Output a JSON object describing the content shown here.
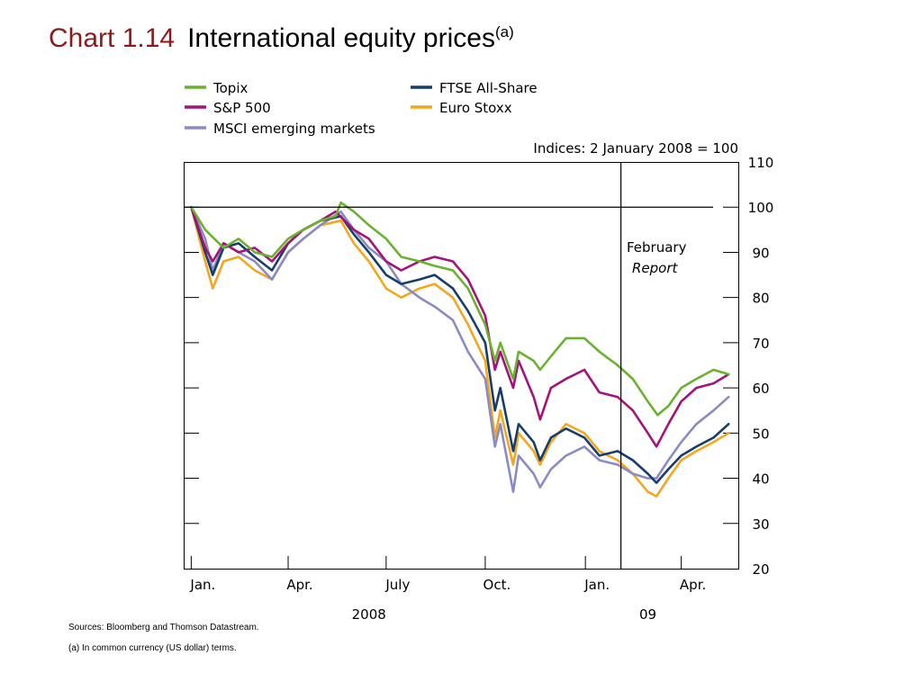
{
  "title": {
    "number": "Chart 1.14",
    "text": "International equity prices",
    "sup": "(a)"
  },
  "sources": "Sources:  Bloomberg and Thomson Datastream.",
  "note": "(a)  In common currency (US dollar) terms.",
  "chart_data": {
    "type": "line",
    "index_label": "Indices:  2 January 2008 = 100",
    "ylim": [
      20,
      110
    ],
    "yticks": [
      20,
      30,
      40,
      50,
      60,
      70,
      80,
      90,
      100,
      110
    ],
    "ylabel": "",
    "xlabel": "",
    "x_tick_labels": [
      "Jan.",
      "Apr.",
      "July",
      "Oct.",
      "Jan.",
      "Apr."
    ],
    "x_tick_dates": [
      "2008-01-02",
      "2008-04-01",
      "2008-07-01",
      "2008-10-01",
      "2009-01-02",
      "2009-04-01"
    ],
    "x_year_labels": [
      {
        "label": "2008",
        "date": "2008-06-15"
      },
      {
        "label": "09",
        "date": "2009-03-01"
      }
    ],
    "xlim": [
      "2007-12-26",
      "2009-05-24"
    ],
    "legend_position": "top",
    "reference_line": 100,
    "annotation": {
      "line1": "February",
      "line2": "Report",
      "date": "2009-02-04"
    },
    "series": [
      {
        "name": "Topix",
        "color": "#6ab22e",
        "x": [
          "2008-01-02",
          "2008-01-15",
          "2008-02-01",
          "2008-02-15",
          "2008-03-01",
          "2008-03-17",
          "2008-04-01",
          "2008-04-15",
          "2008-05-01",
          "2008-05-15",
          "2008-05-20",
          "2008-06-01",
          "2008-06-15",
          "2008-07-01",
          "2008-07-15",
          "2008-08-01",
          "2008-08-15",
          "2008-09-01",
          "2008-09-15",
          "2008-10-01",
          "2008-10-10",
          "2008-10-15",
          "2008-10-27",
          "2008-11-01",
          "2008-11-15",
          "2008-11-21",
          "2008-12-01",
          "2008-12-15",
          "2009-01-01",
          "2009-01-15",
          "2009-02-01",
          "2009-02-15",
          "2009-03-01",
          "2009-03-10",
          "2009-03-20",
          "2009-04-01",
          "2009-04-15",
          "2009-05-01",
          "2009-05-15"
        ],
        "y": [
          100,
          95,
          91,
          93,
          90,
          89,
          93,
          95,
          97,
          98,
          101,
          99,
          96,
          93,
          89,
          88,
          87,
          86,
          82,
          74,
          66,
          70,
          62,
          68,
          66,
          64,
          67,
          71,
          71,
          68,
          65,
          62,
          57,
          54,
          56,
          60,
          62,
          64,
          63
        ]
      },
      {
        "name": "S&P 500",
        "color": "#a4127a",
        "x": [
          "2008-01-02",
          "2008-01-15",
          "2008-01-22",
          "2008-02-01",
          "2008-02-15",
          "2008-03-01",
          "2008-03-17",
          "2008-04-01",
          "2008-04-15",
          "2008-05-01",
          "2008-05-15",
          "2008-06-01",
          "2008-06-15",
          "2008-07-01",
          "2008-07-15",
          "2008-08-01",
          "2008-08-15",
          "2008-09-01",
          "2008-09-15",
          "2008-10-01",
          "2008-10-10",
          "2008-10-15",
          "2008-10-27",
          "2008-11-01",
          "2008-11-15",
          "2008-11-21",
          "2008-12-01",
          "2008-12-15",
          "2009-01-01",
          "2009-01-15",
          "2009-02-01",
          "2009-02-15",
          "2009-03-01",
          "2009-03-09",
          "2009-03-20",
          "2009-04-01",
          "2009-04-15",
          "2009-05-01",
          "2009-05-15"
        ],
        "y": [
          100,
          91,
          88,
          92,
          90,
          91,
          88,
          92,
          95,
          97,
          99,
          95,
          93,
          88,
          86,
          88,
          89,
          88,
          84,
          76,
          64,
          68,
          60,
          66,
          58,
          53,
          60,
          62,
          64,
          59,
          58,
          55,
          50,
          47,
          52,
          57,
          60,
          61,
          63
        ]
      },
      {
        "name": "MSCI emerging markets",
        "color": "#8b8bc4",
        "x": [
          "2008-01-02",
          "2008-01-15",
          "2008-01-22",
          "2008-02-01",
          "2008-02-15",
          "2008-03-01",
          "2008-03-17",
          "2008-04-01",
          "2008-04-15",
          "2008-05-01",
          "2008-05-20",
          "2008-06-01",
          "2008-06-15",
          "2008-07-01",
          "2008-07-15",
          "2008-08-01",
          "2008-08-15",
          "2008-09-01",
          "2008-09-15",
          "2008-10-01",
          "2008-10-10",
          "2008-10-15",
          "2008-10-27",
          "2008-11-01",
          "2008-11-15",
          "2008-11-21",
          "2008-12-01",
          "2008-12-15",
          "2009-01-01",
          "2009-01-15",
          "2009-02-01",
          "2009-02-15",
          "2009-03-01",
          "2009-03-09",
          "2009-03-20",
          "2009-04-01",
          "2009-04-15",
          "2009-05-01",
          "2009-05-15"
        ],
        "y": [
          100,
          93,
          86,
          92,
          90,
          88,
          84,
          90,
          93,
          96,
          99,
          95,
          91,
          88,
          83,
          80,
          78,
          75,
          68,
          62,
          47,
          52,
          37,
          45,
          41,
          38,
          42,
          45,
          47,
          44,
          43,
          41,
          40,
          40,
          44,
          48,
          52,
          55,
          58
        ]
      },
      {
        "name": "FTSE All-Share",
        "color": "#173e6b",
        "x": [
          "2008-01-02",
          "2008-01-15",
          "2008-01-22",
          "2008-02-01",
          "2008-02-15",
          "2008-03-01",
          "2008-03-17",
          "2008-04-01",
          "2008-04-15",
          "2008-05-01",
          "2008-05-20",
          "2008-06-01",
          "2008-06-15",
          "2008-07-01",
          "2008-07-15",
          "2008-08-01",
          "2008-08-15",
          "2008-09-01",
          "2008-09-15",
          "2008-10-01",
          "2008-10-10",
          "2008-10-15",
          "2008-10-27",
          "2008-11-01",
          "2008-11-15",
          "2008-11-21",
          "2008-12-01",
          "2008-12-15",
          "2009-01-01",
          "2009-01-15",
          "2009-02-01",
          "2009-02-15",
          "2009-03-01",
          "2009-03-09",
          "2009-03-20",
          "2009-04-01",
          "2009-04-15",
          "2009-05-01",
          "2009-05-15"
        ],
        "y": [
          100,
          90,
          85,
          91,
          92,
          89,
          86,
          92,
          95,
          97,
          98,
          94,
          90,
          85,
          83,
          84,
          85,
          82,
          77,
          70,
          55,
          60,
          46,
          52,
          48,
          44,
          49,
          51,
          49,
          45,
          46,
          44,
          41,
          39,
          42,
          45,
          47,
          49,
          52
        ]
      },
      {
        "name": "Euro Stoxx",
        "color": "#f4a71d",
        "x": [
          "2008-01-02",
          "2008-01-15",
          "2008-01-22",
          "2008-02-01",
          "2008-02-15",
          "2008-03-01",
          "2008-03-17",
          "2008-04-01",
          "2008-04-15",
          "2008-05-01",
          "2008-05-20",
          "2008-06-01",
          "2008-06-15",
          "2008-07-01",
          "2008-07-15",
          "2008-08-01",
          "2008-08-15",
          "2008-09-01",
          "2008-09-15",
          "2008-10-01",
          "2008-10-10",
          "2008-10-15",
          "2008-10-27",
          "2008-11-01",
          "2008-11-15",
          "2008-11-21",
          "2008-12-01",
          "2008-12-15",
          "2009-01-01",
          "2009-01-15",
          "2009-02-01",
          "2009-02-15",
          "2009-03-01",
          "2009-03-09",
          "2009-03-20",
          "2009-04-01",
          "2009-04-15",
          "2009-05-01",
          "2009-05-15"
        ],
        "y": [
          100,
          88,
          82,
          88,
          89,
          86,
          84,
          90,
          93,
          96,
          97,
          92,
          88,
          82,
          80,
          82,
          83,
          80,
          74,
          66,
          49,
          55,
          43,
          50,
          46,
          43,
          48,
          52,
          50,
          46,
          44,
          41,
          37,
          36,
          40,
          44,
          46,
          48,
          50
        ]
      }
    ]
  }
}
